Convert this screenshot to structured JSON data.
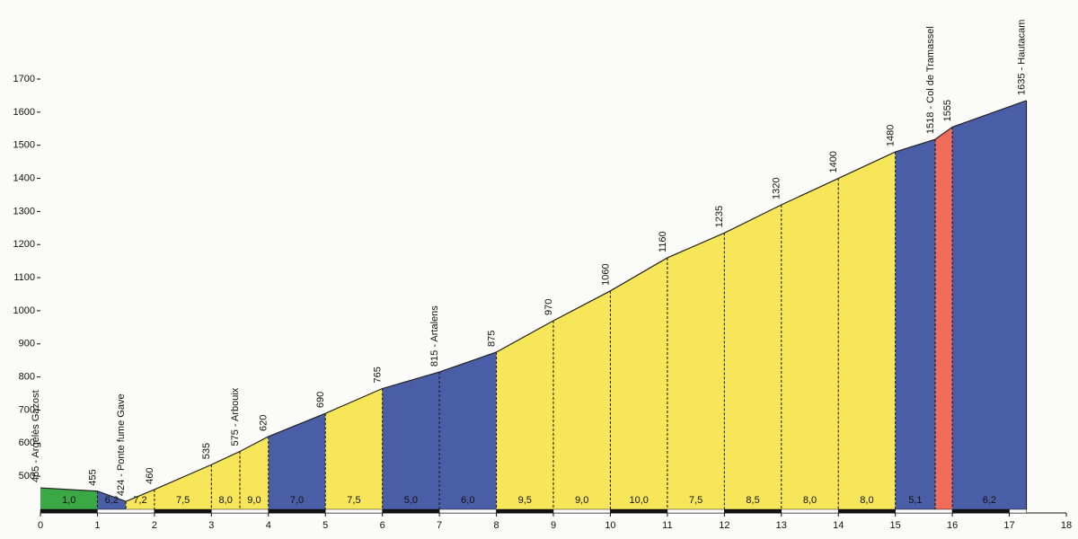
{
  "chart_data": {
    "type": "area",
    "x": [
      0,
      1,
      1.5,
      2,
      3,
      3.5,
      4,
      5,
      6,
      7,
      8,
      9,
      10,
      11,
      12,
      13,
      14,
      15,
      15.7,
      16,
      17.3
    ],
    "values": [
      465,
      455,
      424,
      460,
      535,
      575,
      620,
      690,
      765,
      815,
      875,
      970,
      1060,
      1160,
      1235,
      1320,
      1400,
      1480,
      1518,
      1555,
      1635
    ],
    "value_labels": [
      "465 - Argelès Gazost",
      "455",
      "424 - Ponte fume Gave",
      "460",
      "535",
      "575 - Arbouix",
      "620",
      "690",
      "765",
      "815 - Artalens",
      "875",
      "970",
      "1060",
      "1160",
      "1235",
      "1320",
      "1400",
      "1480",
      "1518 - Col de Tramassel",
      "1555",
      "1635 - Hautacam"
    ],
    "segment_labels": [
      "1,0",
      "6,2",
      "7,2",
      "7,5",
      "8,0",
      "9,0",
      "7,0",
      "7,5",
      "5,0",
      "6,0",
      "9,5",
      "9,0",
      "10,0",
      "7,5",
      "8,5",
      "8,0",
      "8,0",
      "5,1",
      null,
      "6,2"
    ],
    "segment_colors": [
      "#3aa845",
      "#4a5ea8",
      "#f7e65a",
      "#f7e65a",
      "#f7e65a",
      "#f7e65a",
      "#4a5ea8",
      "#f7e65a",
      "#4a5ea8",
      "#4a5ea8",
      "#f7e65a",
      "#f7e65a",
      "#f7e65a",
      "#f7e65a",
      "#f7e65a",
      "#f7e65a",
      "#f7e65a",
      "#4a5ea8",
      "#ef6b5a",
      "#4a5ea8"
    ],
    "xlim": [
      0,
      18
    ],
    "xticks": [
      0,
      1,
      2,
      3,
      4,
      5,
      6,
      7,
      8,
      9,
      10,
      11,
      12,
      13,
      14,
      15,
      16,
      17,
      18
    ],
    "ylim": [
      400,
      1700
    ],
    "yticks": [
      500,
      600,
      700,
      800,
      900,
      1000,
      1100,
      1200,
      1300,
      1400,
      1500,
      1600,
      1700
    ]
  }
}
